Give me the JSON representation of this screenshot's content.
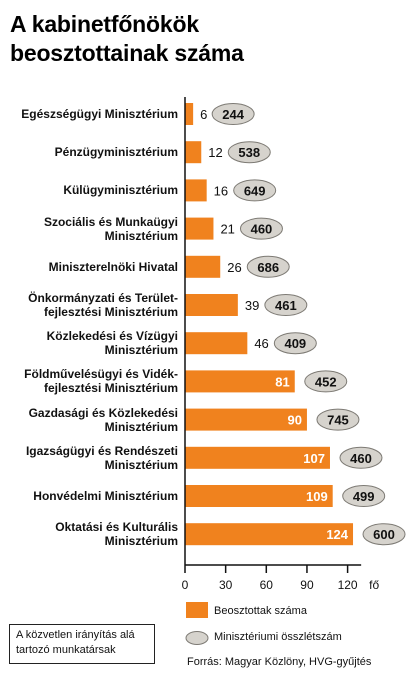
{
  "title": {
    "line1": "A kabinetfőnökök",
    "line2": "beosztottainak száma"
  },
  "chart_data": {
    "type": "bar",
    "orientation": "horizontal",
    "categories": [
      [
        "Egészségügyi Minisztérium"
      ],
      [
        "Pénzügyminisztérium"
      ],
      [
        "Külügyminisztérium"
      ],
      [
        "Szociális és Munkaügyi",
        "Minisztérium"
      ],
      [
        "Miniszterelnöki Hivatal"
      ],
      [
        "Önkormányzati és Terület-",
        "fejlesztési Minisztérium"
      ],
      [
        "Közlekedési és Vízügyi",
        "Minisztérium"
      ],
      [
        "Földművelésügyi és Vidék-",
        "fejlesztési Minisztérium"
      ],
      [
        "Gazdasági és Közlekedési",
        "Minisztérium"
      ],
      [
        "Igazságügyi és Rendészeti",
        "Minisztérium"
      ],
      [
        "Honvédelmi Minisztérium"
      ],
      [
        "Oktatási és Kulturális",
        "Minisztérium"
      ]
    ],
    "series": [
      {
        "name": "Beosztottak száma",
        "values": [
          6,
          12,
          16,
          21,
          26,
          39,
          46,
          81,
          90,
          107,
          109,
          124
        ],
        "color": "#f0821e"
      },
      {
        "name": "Minisztériumi összlétszám",
        "values": [
          244,
          538,
          649,
          460,
          686,
          461,
          409,
          452,
          745,
          460,
          499,
          600
        ],
        "color": "#d6d3cd"
      }
    ],
    "xlim": [
      0,
      130
    ],
    "xticks": [
      0,
      30,
      60,
      90,
      120
    ],
    "x_unit": "fő",
    "grid": false,
    "legend_position": "bottom-right"
  },
  "legend": {
    "bar_label": "Beosztottak száma",
    "ellipse_label": "Minisztériumi összlétszám"
  },
  "note": {
    "line1": "A közvetlen irányítás alá",
    "line2": "tartozó munkatársak"
  },
  "source": "Forrás: Magyar Közlöny, HVG-gyűjtés"
}
